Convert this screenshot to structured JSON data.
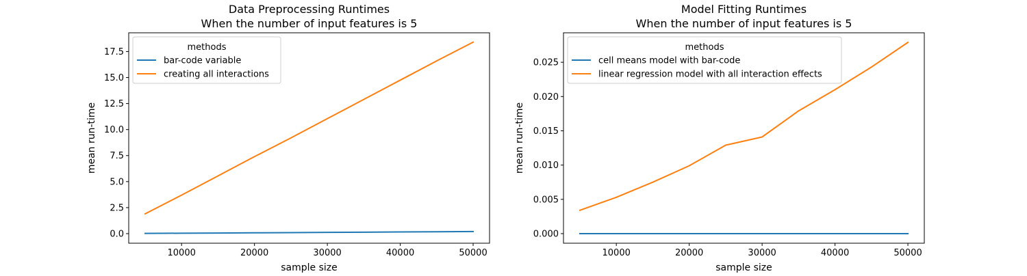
{
  "colors": {
    "series_0": "#1f77b4",
    "series_1": "#ff7f0e",
    "axis": "#000000",
    "legend_border": "#cccccc"
  },
  "chart_data": [
    {
      "type": "line",
      "title": "Data Preprocessing Runtimes",
      "subtitle": "When the number of input features is 5",
      "xlabel": "sample size",
      "ylabel": "mean run-time",
      "xlim": [
        2750,
        52250
      ],
      "ylim": [
        -0.92,
        19.3
      ],
      "xticks": [
        10000,
        20000,
        30000,
        40000,
        50000
      ],
      "xtick_labels": [
        "10000",
        "20000",
        "30000",
        "40000",
        "50000"
      ],
      "yticks": [
        0,
        2.5,
        5,
        7.5,
        10,
        12.5,
        15,
        17.5
      ],
      "ytick_labels": [
        "0.0",
        "2.5",
        "5.0",
        "7.5",
        "10.0",
        "12.5",
        "15.0",
        "17.5"
      ],
      "grid": false,
      "legend": {
        "title": "methods",
        "placement": "top-left"
      },
      "x": [
        5000,
        10000,
        15000,
        20000,
        25000,
        30000,
        35000,
        40000,
        45000,
        50000
      ],
      "series": [
        {
          "name": "bar-code variable",
          "values": [
            0.02,
            0.04,
            0.06,
            0.08,
            0.1,
            0.12,
            0.14,
            0.16,
            0.18,
            0.2
          ]
        },
        {
          "name": "creating all interactions",
          "values": [
            1.9,
            3.7,
            5.55,
            7.4,
            9.2,
            11.05,
            12.9,
            14.75,
            16.6,
            18.4
          ]
        }
      ]
    },
    {
      "type": "line",
      "title": "Model Fitting Runtimes",
      "subtitle": "When the number of input features is 5",
      "xlabel": "sample size",
      "ylabel": "mean run-time",
      "xlim": [
        2750,
        52250
      ],
      "ylim": [
        -0.0014,
        0.0293
      ],
      "xticks": [
        10000,
        20000,
        30000,
        40000,
        50000
      ],
      "xtick_labels": [
        "10000",
        "20000",
        "30000",
        "40000",
        "50000"
      ],
      "yticks": [
        0,
        0.005,
        0.01,
        0.015,
        0.02,
        0.025
      ],
      "ytick_labels": [
        "0.000",
        "0.005",
        "0.010",
        "0.015",
        "0.020",
        "0.025"
      ],
      "grid": false,
      "legend": {
        "title": "methods",
        "placement": "top-left"
      },
      "x": [
        5000,
        10000,
        15000,
        20000,
        25000,
        30000,
        35000,
        40000,
        45000,
        50000
      ],
      "series": [
        {
          "name": "cell means model with bar-code",
          "values": [
            0,
            0,
            0,
            0,
            0,
            0,
            0,
            0,
            0,
            0
          ]
        },
        {
          "name": "linear regression model with all interaction effects",
          "values": [
            0.0034,
            0.0053,
            0.0075,
            0.0099,
            0.0129,
            0.0141,
            0.0179,
            0.021,
            0.0243,
            0.0279
          ]
        }
      ]
    }
  ]
}
